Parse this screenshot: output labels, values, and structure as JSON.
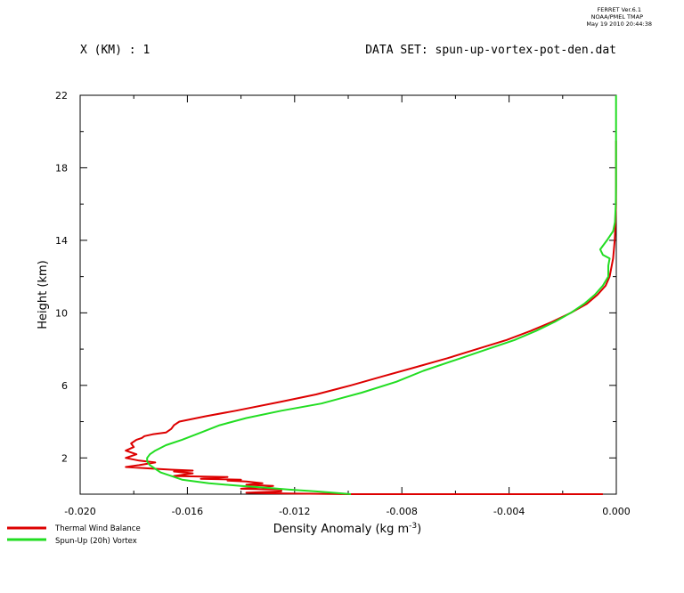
{
  "stamp": {
    "line1": "FERRET Ver.6.1",
    "line2": "NOAA/PMEL TMAP",
    "line3": "May 19 2010 20:44:38"
  },
  "header": {
    "left": "X (KM) : 1",
    "right": "DATA SET: spun-up-vortex-pot-den.dat"
  },
  "chart_data": {
    "type": "line",
    "title": "",
    "xlabel": "Density Anomaly (kg m",
    "xlabel_exponent": "-3",
    "xlabel_suffix": ")",
    "ylabel": "Height (km)",
    "xlim": [
      -0.02,
      0.0
    ],
    "ylim": [
      0,
      22
    ],
    "x_ticks": [
      -0.02,
      -0.016,
      -0.012,
      -0.008,
      -0.004,
      0.0
    ],
    "x_tick_labels": [
      "-0.020",
      "-0.016",
      "-0.012",
      "-0.008",
      "-0.004",
      "0.000"
    ],
    "x_minor_ticks": [
      -0.018,
      -0.014,
      -0.01,
      -0.006,
      -0.002
    ],
    "y_ticks": [
      2,
      6,
      10,
      14,
      18,
      22
    ],
    "y_tick_labels": [
      "2",
      "6",
      "10",
      "14",
      "18",
      "22"
    ],
    "y_minor_ticks": [
      4,
      8,
      12,
      16,
      20
    ],
    "grid": false,
    "legend_position": "bottom-left",
    "series": [
      {
        "name": "Thermal Wind Balance",
        "color": "#dd0000",
        "points": [
          [
            -0.0005,
            0.0
          ],
          [
            -0.01,
            0.0
          ],
          [
            -0.013,
            0.05
          ],
          [
            -0.0138,
            0.08
          ],
          [
            -0.0125,
            0.15
          ],
          [
            -0.0125,
            0.25
          ],
          [
            -0.014,
            0.3
          ],
          [
            -0.0132,
            0.4
          ],
          [
            -0.0128,
            0.45
          ],
          [
            -0.0138,
            0.52
          ],
          [
            -0.0132,
            0.6
          ],
          [
            -0.0138,
            0.7
          ],
          [
            -0.0145,
            0.75
          ],
          [
            -0.014,
            0.8
          ],
          [
            -0.0155,
            0.85
          ],
          [
            -0.0145,
            0.95
          ],
          [
            -0.0165,
            1.0
          ],
          [
            -0.0158,
            1.15
          ],
          [
            -0.0165,
            1.25
          ],
          [
            -0.0158,
            1.3
          ],
          [
            -0.0166,
            1.35
          ],
          [
            -0.0172,
            1.4
          ],
          [
            -0.0183,
            1.5
          ],
          [
            -0.0178,
            1.6
          ],
          [
            -0.0172,
            1.75
          ],
          [
            -0.0178,
            1.85
          ],
          [
            -0.0183,
            2.0
          ],
          [
            -0.0179,
            2.2
          ],
          [
            -0.0183,
            2.4
          ],
          [
            -0.018,
            2.6
          ],
          [
            -0.0181,
            2.8
          ],
          [
            -0.0179,
            3.0
          ],
          [
            -0.0177,
            3.1
          ],
          [
            -0.0176,
            3.2
          ],
          [
            -0.0173,
            3.3
          ],
          [
            -0.0168,
            3.4
          ],
          [
            -0.0166,
            3.6
          ],
          [
            -0.0165,
            3.8
          ],
          [
            -0.0163,
            4.0
          ],
          [
            -0.0153,
            4.3
          ],
          [
            -0.0142,
            4.6
          ],
          [
            -0.0125,
            5.1
          ],
          [
            -0.0112,
            5.5
          ],
          [
            -0.0099,
            6.0
          ],
          [
            -0.0087,
            6.5
          ],
          [
            -0.0075,
            7.0
          ],
          [
            -0.0063,
            7.5
          ],
          [
            -0.0052,
            8.0
          ],
          [
            -0.0041,
            8.5
          ],
          [
            -0.0032,
            9.0
          ],
          [
            -0.0024,
            9.5
          ],
          [
            -0.0017,
            10.0
          ],
          [
            -0.0011,
            10.5
          ],
          [
            -0.0007,
            11.0
          ],
          [
            -0.0004,
            11.5
          ],
          [
            -0.00025,
            12.0
          ],
          [
            -0.00012,
            13.0
          ],
          [
            -6e-05,
            14.0
          ],
          [
            -3e-05,
            15.0
          ],
          [
            -1e-05,
            16.0
          ],
          [
            -1e-05,
            17.0
          ],
          [
            -1e-05,
            18.0
          ],
          [
            -1e-05,
            19.5
          ]
        ]
      },
      {
        "name": "Spun-Up (20h) Vortex",
        "color": "#22dd22",
        "points": [
          [
            -0.0099,
            0.0
          ],
          [
            -0.0103,
            0.05
          ],
          [
            -0.0112,
            0.15
          ],
          [
            -0.0122,
            0.25
          ],
          [
            -0.013,
            0.35
          ],
          [
            -0.014,
            0.45
          ],
          [
            -0.0152,
            0.6
          ],
          [
            -0.0162,
            0.8
          ],
          [
            -0.0166,
            1.0
          ],
          [
            -0.017,
            1.2
          ],
          [
            -0.0172,
            1.4
          ],
          [
            -0.0174,
            1.6
          ],
          [
            -0.0175,
            1.8
          ],
          [
            -0.0175,
            2.0
          ],
          [
            -0.0174,
            2.2
          ],
          [
            -0.0172,
            2.4
          ],
          [
            -0.0168,
            2.7
          ],
          [
            -0.0162,
            3.0
          ],
          [
            -0.0155,
            3.4
          ],
          [
            -0.0148,
            3.8
          ],
          [
            -0.0138,
            4.2
          ],
          [
            -0.0125,
            4.6
          ],
          [
            -0.011,
            5.0
          ],
          [
            -0.0095,
            5.6
          ],
          [
            -0.0082,
            6.2
          ],
          [
            -0.0072,
            6.8
          ],
          [
            -0.006,
            7.4
          ],
          [
            -0.0048,
            8.0
          ],
          [
            -0.0038,
            8.5
          ],
          [
            -0.003,
            9.0
          ],
          [
            -0.0023,
            9.5
          ],
          [
            -0.0017,
            10.0
          ],
          [
            -0.0012,
            10.5
          ],
          [
            -0.0008,
            11.0
          ],
          [
            -0.0005,
            11.5
          ],
          [
            -0.0003,
            12.0
          ],
          [
            -0.0003,
            12.6
          ],
          [
            -0.00025,
            13.0
          ],
          [
            -0.0005,
            13.2
          ],
          [
            -0.0006,
            13.5
          ],
          [
            -0.00035,
            14.0
          ],
          [
            -0.00012,
            14.5
          ],
          [
            -5e-05,
            15.0
          ],
          [
            -2e-05,
            16.0
          ],
          [
            -1e-05,
            17.0
          ],
          [
            -1e-05,
            19.0
          ],
          [
            -1e-05,
            22.0
          ]
        ]
      }
    ]
  }
}
